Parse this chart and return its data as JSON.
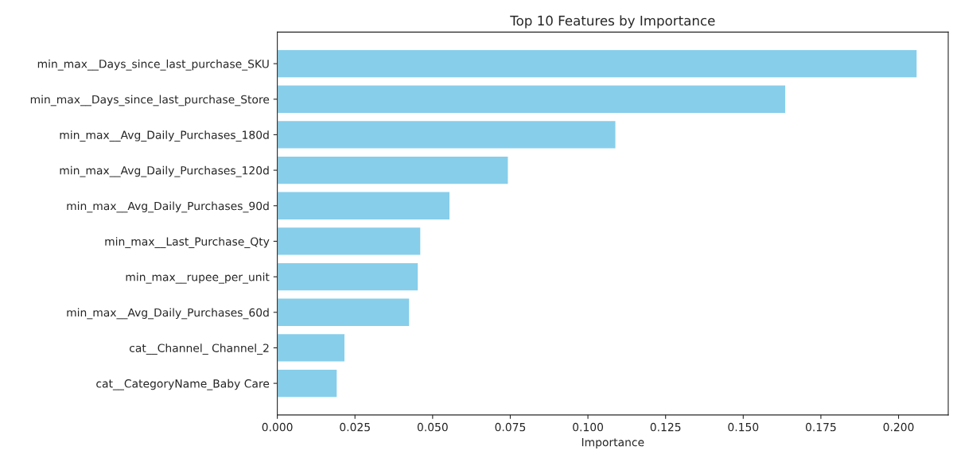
{
  "chart_data": {
    "type": "bar",
    "orientation": "horizontal",
    "title": "Top 10 Features by Importance",
    "xlabel": "Importance",
    "categories": [
      "min_max__Days_since_last_purchase_SKU",
      "min_max__Days_since_last_purchase_Store",
      "min_max__Avg_Daily_Purchases_180d",
      "min_max__Avg_Daily_Purchases_120d",
      "min_max__Avg_Daily_Purchases_90d",
      "min_max__Last_Purchase_Qty",
      "min_max__rupee_per_unit",
      "min_max__Avg_Daily_Purchases_60d",
      "cat__Channel_ Channel_2",
      "cat__CategoryName_Baby Care"
    ],
    "values": [
      0.206,
      0.1637,
      0.109,
      0.0744,
      0.0556,
      0.0462,
      0.0454,
      0.0426,
      0.0218,
      0.0193
    ],
    "color": "#87ceeb",
    "xlim": [
      0,
      0.216
    ],
    "xticks": [
      {
        "value": 0,
        "label": "0.000"
      },
      {
        "value": 0.025,
        "label": "0.025"
      },
      {
        "value": 0.05,
        "label": "0.050"
      },
      {
        "value": 0.075,
        "label": "0.075"
      },
      {
        "value": 0.1,
        "label": "0.100"
      },
      {
        "value": 0.125,
        "label": "0.125"
      },
      {
        "value": 0.15,
        "label": "0.150"
      },
      {
        "value": 0.175,
        "label": "0.175"
      },
      {
        "value": 0.2,
        "label": "0.200"
      }
    ],
    "grid": false,
    "legend": false
  }
}
